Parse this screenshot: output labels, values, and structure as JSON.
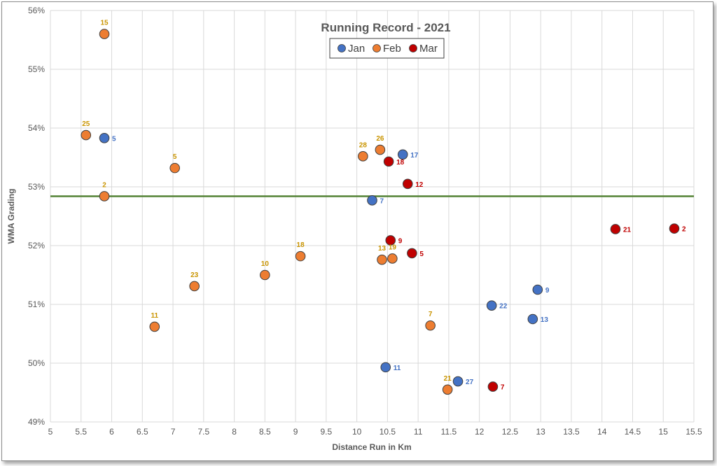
{
  "chart_data": {
    "type": "scatter",
    "title": "Running Record - 2021",
    "xlabel": "Distance Run in Km",
    "ylabel": "WMA Grading",
    "xlim": [
      5,
      15.5
    ],
    "ylim": [
      49,
      56
    ],
    "x_ticks": [
      "5",
      "5.5",
      "6",
      "6.5",
      "7",
      "7.5",
      "8",
      "8.5",
      "9",
      "9.5",
      "10",
      "10.5",
      "11",
      "11.5",
      "12",
      "12.5",
      "13",
      "13.5",
      "14",
      "14.5",
      "15",
      "15.5"
    ],
    "y_ticks": [
      "49%",
      "50%",
      "51%",
      "52%",
      "53%",
      "54%",
      "55%",
      "56%"
    ],
    "grid": true,
    "legend_position": "top",
    "reference_line": {
      "y": 52.84,
      "color": "#548235"
    },
    "series": [
      {
        "name": "Jan",
        "color": "#4472c4",
        "label_color": "#4472c4",
        "points": [
          {
            "x": 5.88,
            "y": 53.83,
            "label": "5"
          },
          {
            "x": 10.75,
            "y": 53.55,
            "label": "17"
          },
          {
            "x": 10.25,
            "y": 52.77,
            "label": "7"
          },
          {
            "x": 12.95,
            "y": 51.25,
            "label": "9"
          },
          {
            "x": 12.2,
            "y": 50.98,
            "label": "22"
          },
          {
            "x": 12.87,
            "y": 50.75,
            "label": "13"
          },
          {
            "x": 10.47,
            "y": 49.93,
            "label": "11"
          },
          {
            "x": 11.65,
            "y": 49.69,
            "label": "27"
          }
        ]
      },
      {
        "name": "Feb",
        "color": "#ed7d31",
        "label_color": "#c99400",
        "points": [
          {
            "x": 5.88,
            "y": 55.6,
            "label": "15"
          },
          {
            "x": 5.58,
            "y": 53.88,
            "label": "25"
          },
          {
            "x": 5.88,
            "y": 52.84,
            "label": "2"
          },
          {
            "x": 7.03,
            "y": 53.32,
            "label": "5"
          },
          {
            "x": 6.7,
            "y": 50.62,
            "label": "11"
          },
          {
            "x": 7.35,
            "y": 51.31,
            "label": "23"
          },
          {
            "x": 8.5,
            "y": 51.5,
            "label": "10"
          },
          {
            "x": 9.08,
            "y": 51.82,
            "label": "18"
          },
          {
            "x": 10.1,
            "y": 53.52,
            "label": "28"
          },
          {
            "x": 10.38,
            "y": 53.63,
            "label": "26"
          },
          {
            "x": 10.41,
            "y": 51.76,
            "label": "13"
          },
          {
            "x": 10.58,
            "y": 51.78,
            "label": "19"
          },
          {
            "x": 11.2,
            "y": 50.64,
            "label": "7"
          },
          {
            "x": 11.48,
            "y": 49.55,
            "label": "21"
          }
        ]
      },
      {
        "name": "Mar",
        "color": "#c00000",
        "label_color": "#c00000",
        "points": [
          {
            "x": 10.52,
            "y": 53.43,
            "label": "18"
          },
          {
            "x": 10.83,
            "y": 53.05,
            "label": "12"
          },
          {
            "x": 10.55,
            "y": 52.09,
            "label": "9"
          },
          {
            "x": 10.9,
            "y": 51.87,
            "label": "5"
          },
          {
            "x": 12.22,
            "y": 49.6,
            "label": "7"
          },
          {
            "x": 14.22,
            "y": 52.28,
            "label": "21"
          },
          {
            "x": 15.18,
            "y": 52.29,
            "label": "2"
          }
        ]
      }
    ]
  }
}
